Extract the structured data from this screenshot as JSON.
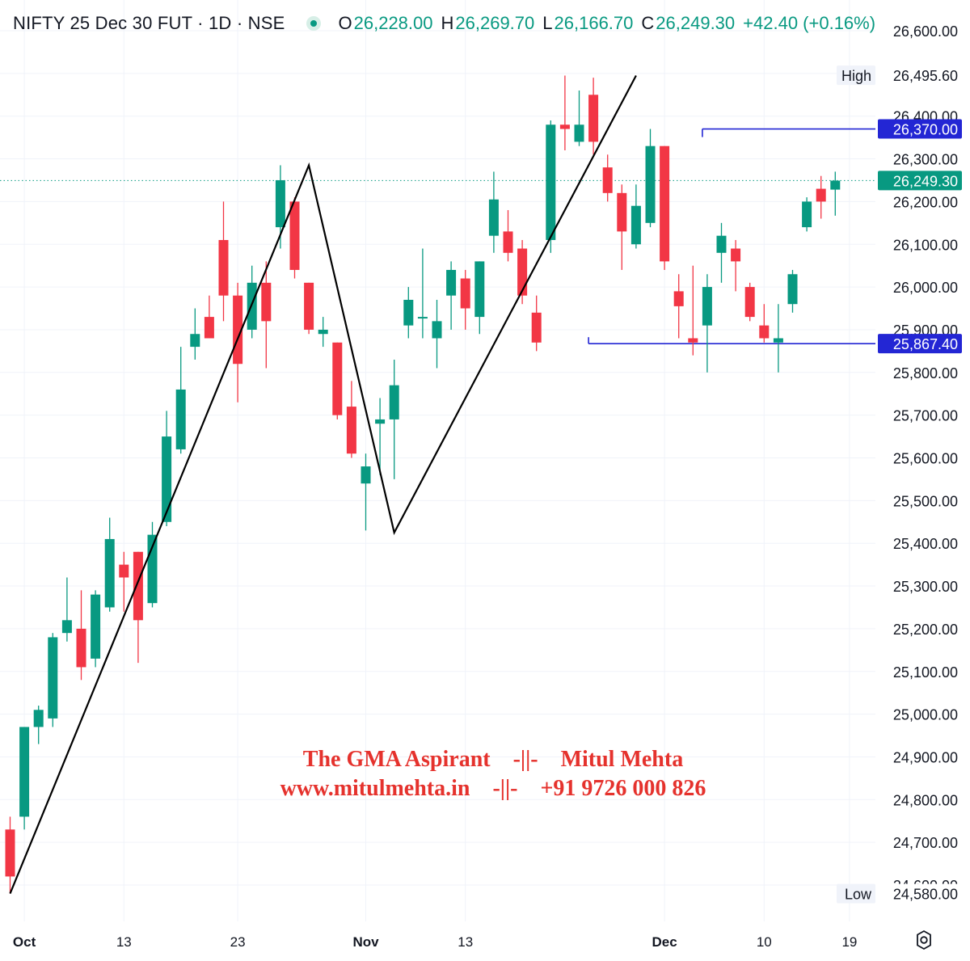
{
  "header": {
    "symbol": "NIFTY 25 Dec 30 FUT · 1D · NSE",
    "open_label": "O",
    "open": "26,228.00",
    "high_label": "H",
    "high": "26,269.70",
    "low_label": "L",
    "low": "26,166.70",
    "close_label": "C",
    "close": "26,249.30",
    "change": "+42.40 (+0.16%)"
  },
  "watermark": {
    "line1": "The GMA Aspirant    -||-    Mitul Mehta",
    "line2": "www.mitulmehta.in    -||-    +91 9726 000 826"
  },
  "colors": {
    "up": "#089981",
    "down": "#f23645",
    "zigzag": "#000000",
    "level_line": "#2326d4",
    "last_price_line": "#089981",
    "grid": "#f0f3fa",
    "watermark": "#e5322d"
  },
  "chart_data": {
    "type": "candlestick",
    "y_axis": {
      "min": 24530,
      "max": 26640,
      "ticks": [
        "26,600.00",
        "26,500.00",
        "26,400.00",
        "26,300.00",
        "26,200.00",
        "26,100.00",
        "26,000.00",
        "25,900.00",
        "25,800.00",
        "25,700.00",
        "25,600.00",
        "25,500.00",
        "25,400.00",
        "25,300.00",
        "25,200.00",
        "25,100.00",
        "25,000.00",
        "24,900.00",
        "24,800.00",
        "24,700.00",
        "24,600.00"
      ],
      "tick_values": [
        26600,
        26500,
        26400,
        26300,
        26200,
        26100,
        26000,
        25900,
        25800,
        25700,
        25600,
        25500,
        25400,
        25300,
        25200,
        25100,
        25000,
        24900,
        24800,
        24700,
        24600
      ],
      "position": "right"
    },
    "x_axis": {
      "labels": [
        {
          "text": "Oct",
          "index": 1,
          "bold": true
        },
        {
          "text": "13",
          "index": 8,
          "bold": false
        },
        {
          "text": "23",
          "index": 16,
          "bold": false
        },
        {
          "text": "Nov",
          "index": 25,
          "bold": true
        },
        {
          "text": "13",
          "index": 32,
          "bold": false
        },
        {
          "text": "Dec",
          "index": 46,
          "bold": true
        },
        {
          "text": "10",
          "index": 53,
          "bold": false
        },
        {
          "text": "19",
          "index": 59,
          "bold": false
        }
      ]
    },
    "price_labels": [
      {
        "label": "High",
        "value": 26495.6,
        "text": "26,495.60",
        "style": "plain"
      },
      {
        "label": "",
        "value": 26370.0,
        "text": "26,370.00",
        "style": "level"
      },
      {
        "label": "",
        "value": 26249.3,
        "text": "26,249.30",
        "style": "last"
      },
      {
        "label": "",
        "value": 25867.4,
        "text": "25,867.40",
        "style": "level"
      },
      {
        "label": "Low",
        "value": 24580.0,
        "text": "24,580.00",
        "style": "plain"
      }
    ],
    "horizontal_levels": [
      {
        "value": 26370.0,
        "from_index": 49
      },
      {
        "value": 25867.4,
        "from_index": 41
      }
    ],
    "last_price": 26249.3,
    "zigzag": [
      {
        "index": 0,
        "price": 24580
      },
      {
        "index": 21,
        "price": 26285
      },
      {
        "index": 27,
        "price": 25425
      },
      {
        "index": 44,
        "price": 26495
      }
    ],
    "candles": [
      {
        "o": 24730,
        "h": 24760,
        "l": 24580,
        "c": 24620
      },
      {
        "o": 24760,
        "h": 24970,
        "l": 24730,
        "c": 24970
      },
      {
        "o": 24970,
        "h": 25020,
        "l": 24930,
        "c": 25010
      },
      {
        "o": 24990,
        "h": 25190,
        "l": 24970,
        "c": 25180
      },
      {
        "o": 25190,
        "h": 25320,
        "l": 25170,
        "c": 25220
      },
      {
        "o": 25200,
        "h": 25290,
        "l": 25080,
        "c": 25110
      },
      {
        "o": 25130,
        "h": 25290,
        "l": 25110,
        "c": 25280
      },
      {
        "o": 25250,
        "h": 25460,
        "l": 25240,
        "c": 25410
      },
      {
        "o": 25350,
        "h": 25380,
        "l": 25240,
        "c": 25320
      },
      {
        "o": 25380,
        "h": 25380,
        "l": 25120,
        "c": 25220
      },
      {
        "o": 25260,
        "h": 25450,
        "l": 25250,
        "c": 25420
      },
      {
        "o": 25450,
        "h": 25710,
        "l": 25440,
        "c": 25650
      },
      {
        "o": 25620,
        "h": 25860,
        "l": 25610,
        "c": 25760
      },
      {
        "o": 25860,
        "h": 25950,
        "l": 25830,
        "c": 25890
      },
      {
        "o": 25930,
        "h": 25980,
        "l": 25880,
        "c": 25880
      },
      {
        "o": 26110,
        "h": 26200,
        "l": 25920,
        "c": 25980
      },
      {
        "o": 25980,
        "h": 26010,
        "l": 25730,
        "c": 25820
      },
      {
        "o": 25900,
        "h": 26050,
        "l": 25880,
        "c": 26010
      },
      {
        "o": 26010,
        "h": 26060,
        "l": 25810,
        "c": 25920
      },
      {
        "o": 26140,
        "h": 26285,
        "l": 26090,
        "c": 26250
      },
      {
        "o": 26200,
        "h": 26210,
        "l": 26020,
        "c": 26040
      },
      {
        "o": 26010,
        "h": 26010,
        "l": 25890,
        "c": 25900
      },
      {
        "o": 25890,
        "h": 25930,
        "l": 25860,
        "c": 25900
      },
      {
        "o": 25870,
        "h": 25870,
        "l": 25690,
        "c": 25700
      },
      {
        "o": 25720,
        "h": 25780,
        "l": 25600,
        "c": 25610
      },
      {
        "o": 25540,
        "h": 25610,
        "l": 25430,
        "c": 25580
      },
      {
        "o": 25680,
        "h": 25740,
        "l": 25560,
        "c": 25690
      },
      {
        "o": 25690,
        "h": 25830,
        "l": 25550,
        "c": 25770
      },
      {
        "o": 25910,
        "h": 26000,
        "l": 25880,
        "c": 25970
      },
      {
        "o": 25930,
        "h": 26090,
        "l": 25880,
        "c": 25930
      },
      {
        "o": 25880,
        "h": 25970,
        "l": 25810,
        "c": 25920
      },
      {
        "o": 25980,
        "h": 26060,
        "l": 25900,
        "c": 26040
      },
      {
        "o": 26020,
        "h": 26040,
        "l": 25900,
        "c": 25950
      },
      {
        "o": 25930,
        "h": 26060,
        "l": 25890,
        "c": 26060
      },
      {
        "o": 26120,
        "h": 26270,
        "l": 26080,
        "c": 26205
      },
      {
        "o": 26130,
        "h": 26180,
        "l": 26060,
        "c": 26080
      },
      {
        "o": 26090,
        "h": 26110,
        "l": 25960,
        "c": 25980
      },
      {
        "o": 25940,
        "h": 25980,
        "l": 25850,
        "c": 25870
      },
      {
        "o": 26110,
        "h": 26390,
        "l": 26080,
        "c": 26380
      },
      {
        "o": 26380,
        "h": 26495,
        "l": 26320,
        "c": 26370
      },
      {
        "o": 26340,
        "h": 26460,
        "l": 26330,
        "c": 26380
      },
      {
        "o": 26450,
        "h": 26490,
        "l": 26310,
        "c": 26340
      },
      {
        "o": 26280,
        "h": 26310,
        "l": 26200,
        "c": 26220
      },
      {
        "o": 26220,
        "h": 26240,
        "l": 26040,
        "c": 26130
      },
      {
        "o": 26100,
        "h": 26240,
        "l": 26090,
        "c": 26190
      },
      {
        "o": 26150,
        "h": 26370,
        "l": 26140,
        "c": 26330
      },
      {
        "o": 26330,
        "h": 26330,
        "l": 26040,
        "c": 26060
      },
      {
        "o": 25990,
        "h": 26030,
        "l": 25880,
        "c": 25955
      },
      {
        "o": 25880,
        "h": 26050,
        "l": 25840,
        "c": 25870
      },
      {
        "o": 25910,
        "h": 26030,
        "l": 25800,
        "c": 26000
      },
      {
        "o": 26080,
        "h": 26150,
        "l": 26010,
        "c": 26120
      },
      {
        "o": 26090,
        "h": 26110,
        "l": 25990,
        "c": 26060
      },
      {
        "o": 26000,
        "h": 26010,
        "l": 25920,
        "c": 25930
      },
      {
        "o": 25910,
        "h": 25960,
        "l": 25870,
        "c": 25880
      },
      {
        "o": 25870,
        "h": 25960,
        "l": 25800,
        "c": 25880
      },
      {
        "o": 25960,
        "h": 26040,
        "l": 25940,
        "c": 26030
      },
      {
        "o": 26140,
        "h": 26210,
        "l": 26130,
        "c": 26200
      },
      {
        "o": 26230,
        "h": 26260,
        "l": 26160,
        "c": 26200
      },
      {
        "o": 26228,
        "h": 26270,
        "l": 26167,
        "c": 26249
      }
    ]
  }
}
